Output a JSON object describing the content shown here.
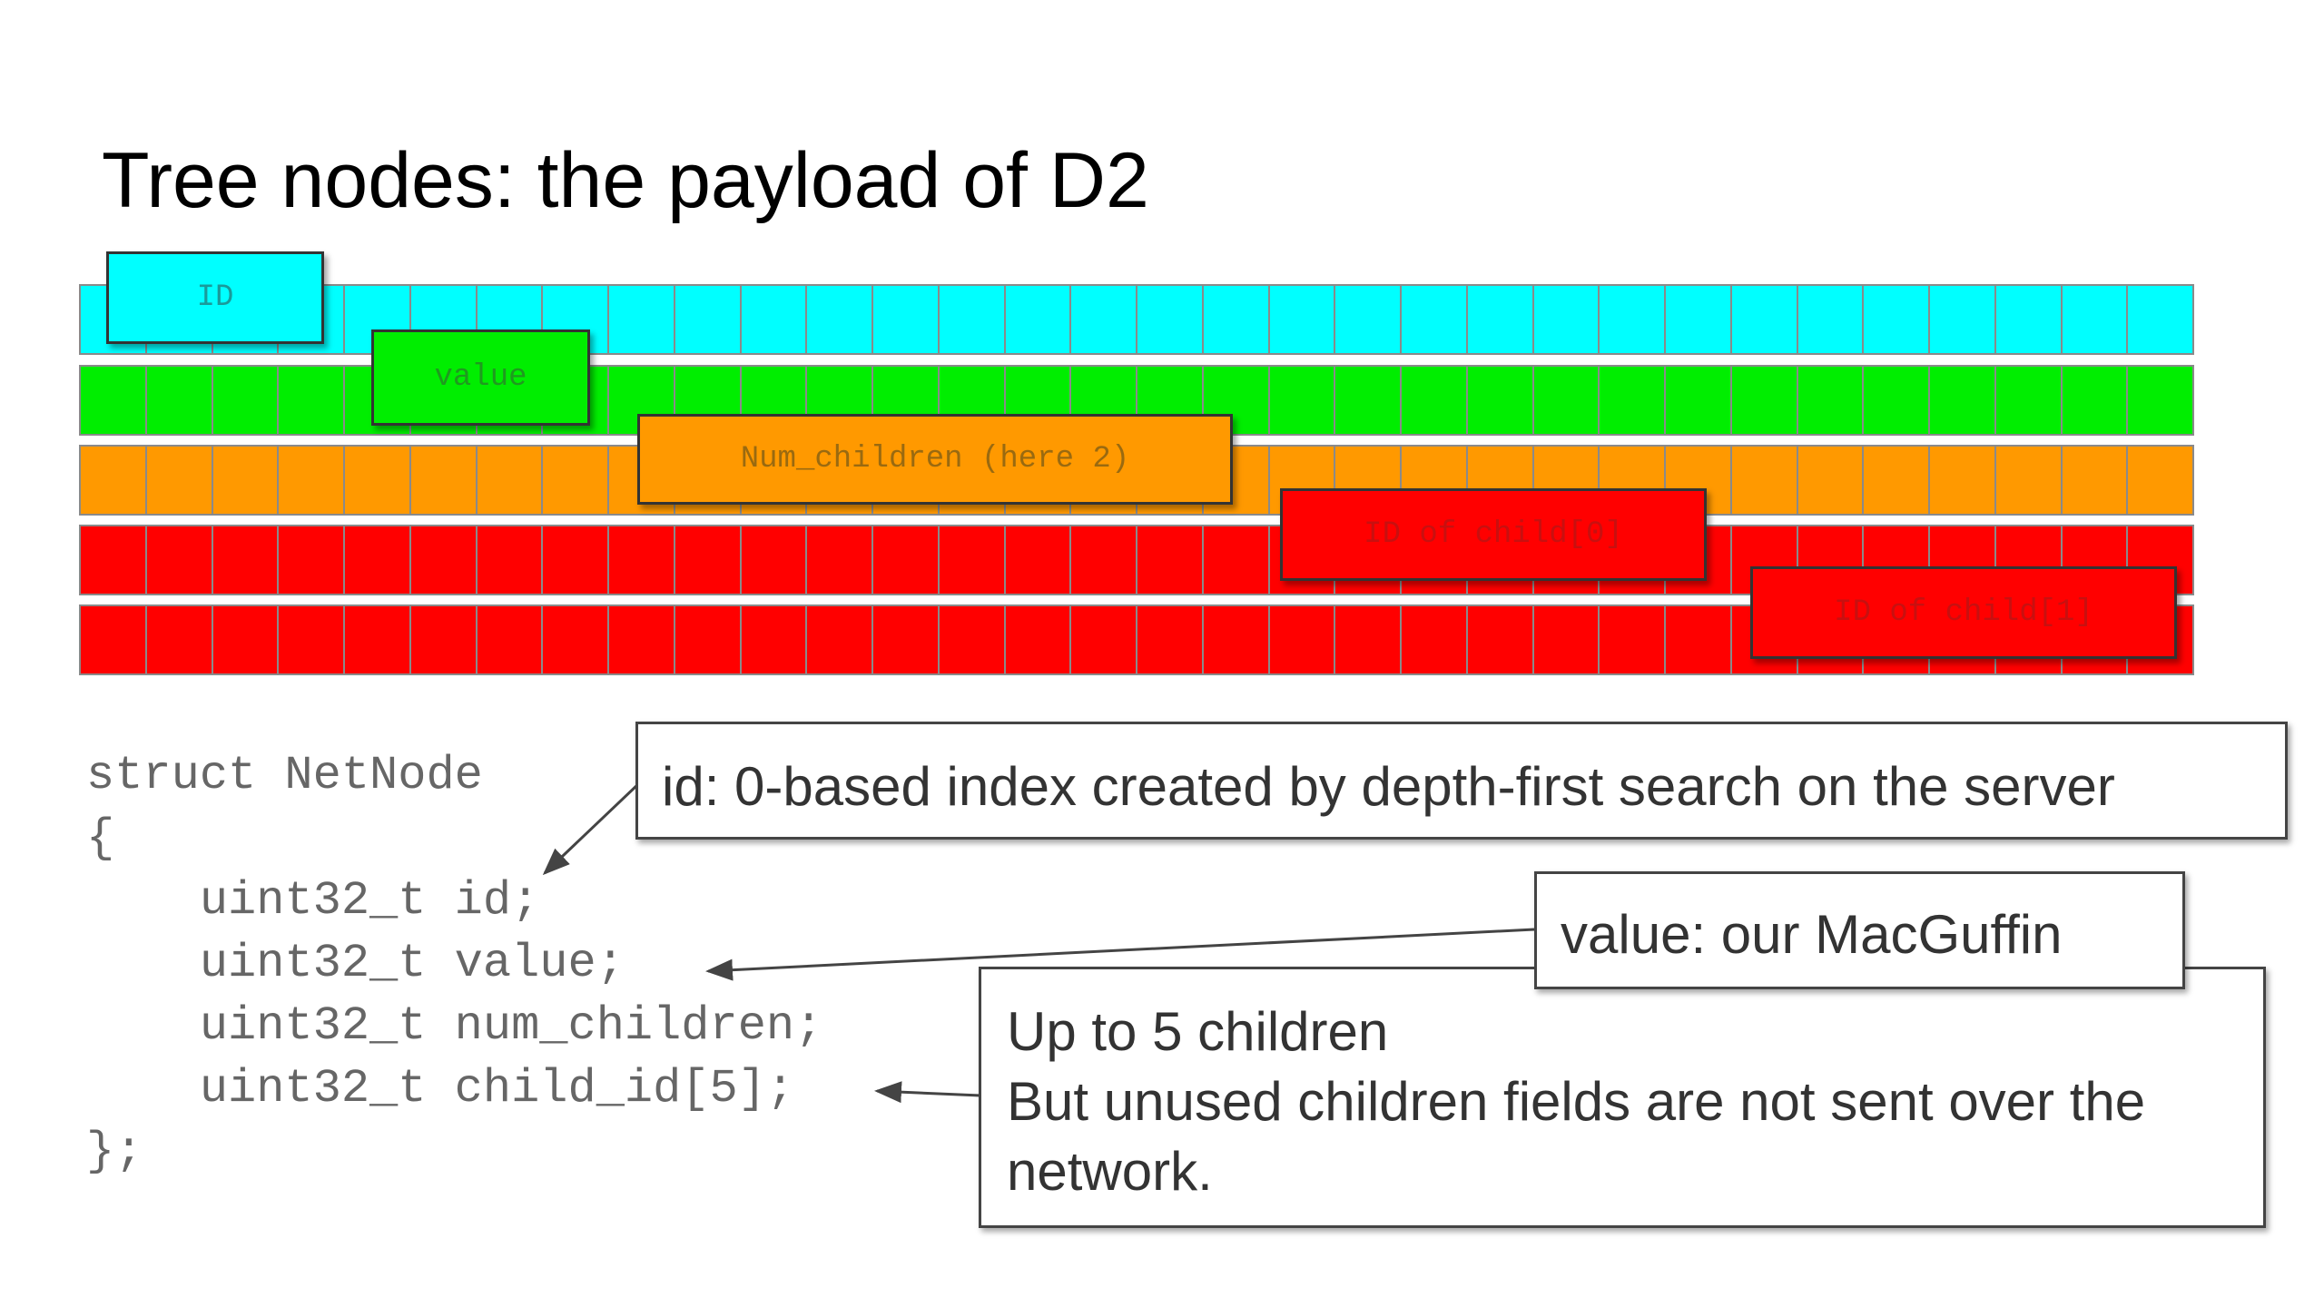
{
  "title": "Tree nodes: the payload of D2",
  "rows": [
    {
      "color": "#00ffff",
      "cells": 32
    },
    {
      "color": "#00ee00",
      "cells": 32
    },
    {
      "color": "#ff9900",
      "cells": 32
    },
    {
      "color": "#ff0000",
      "cells": 32
    },
    {
      "color": "#ff0000",
      "cells": 32
    }
  ],
  "fields": {
    "id": {
      "label": "ID",
      "color": "#00ffff"
    },
    "value": {
      "label": "value",
      "color": "#00ee00"
    },
    "num_children": {
      "label": "Num_children (here 2)",
      "color": "#ff9900"
    },
    "child0": {
      "label": "ID of child[0]",
      "color": "#ff0000"
    },
    "child1": {
      "label": "ID of child[1]",
      "color": "#ff0000"
    }
  },
  "code": {
    "line1": "struct NetNode",
    "line2": "{",
    "line3": "    uint32_t id;",
    "line4": "    uint32_t value;",
    "line5": "    uint32_t num_children;",
    "line6": "    uint32_t child_id[5];",
    "line7": "};"
  },
  "notes": {
    "id": "id: 0-based index created by depth-first search on the server",
    "value": "value: our MacGuffin",
    "children_line1": "Up to 5 children",
    "children_line2": "But unused children fields are not sent over the",
    "children_line3": "network."
  }
}
